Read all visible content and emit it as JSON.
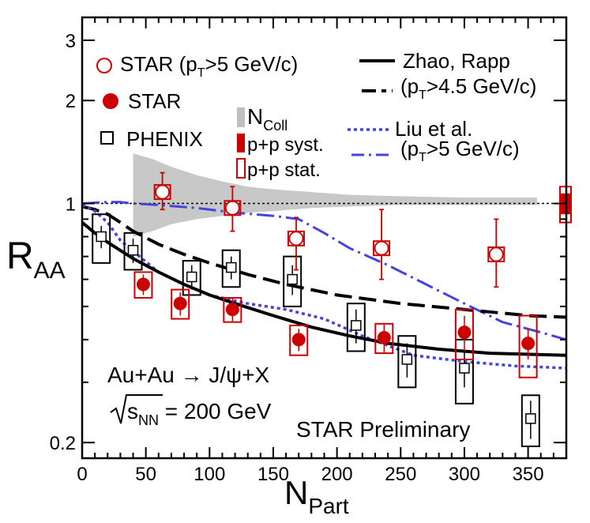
{
  "chart_data": {
    "type": "scatter",
    "ylabel_main": "R",
    "ylabel_sub": "AA",
    "xlabel_main": "N",
    "xlabel_sub": "Part",
    "xlim": [
      0,
      380
    ],
    "ylim": [
      0.18,
      3.5
    ],
    "yscale": "log",
    "x_ticks": [
      0,
      50,
      100,
      150,
      200,
      250,
      300,
      350
    ],
    "x_tick_labels": [
      "0",
      "50",
      "100",
      "150",
      "200",
      "250",
      "300",
      "350"
    ],
    "y_ticks": [
      0.2,
      1,
      2,
      3
    ],
    "y_tick_labels": [
      "0.2",
      "1",
      "2",
      "3"
    ],
    "reference_line": 1,
    "annotations": {
      "reaction": "Au+Au → J/ψ+X",
      "sqrt_label": "s",
      "sqrt_sub": "NN",
      "energy": " = 200 GeV",
      "preliminary": "STAR Preliminary"
    },
    "legend": {
      "star_highpt_pre": "STAR (p",
      "star_highpt_sub": "T",
      "star_highpt_post": ">5 GeV/c)",
      "star": "STAR",
      "phenix": "PHENIX",
      "ncoll_main": "N",
      "ncoll_sub": "Coll",
      "pp_syst": "p+p syst.",
      "pp_stat": "p+p stat.",
      "zhao": "Zhao, Rapp",
      "zhao_pt_pre": "(p",
      "zhao_pt_sub": "T",
      "zhao_pt_post": ">4.5 GeV/c)",
      "liu": "Liu et al.",
      "liu_pt_pre": "(p",
      "liu_pt_sub": "T",
      "liu_pt_post": ">5 GeV/c)"
    },
    "colors": {
      "star": "#cc0000",
      "theory_blue": "#4444dd",
      "band": "#c8c8c8"
    },
    "ncoll_band": {
      "x": [
        40,
        55,
        70,
        90,
        110,
        130,
        150,
        180,
        210,
        250,
        300,
        357
      ],
      "upper": [
        1.4,
        1.35,
        1.28,
        1.21,
        1.16,
        1.12,
        1.1,
        1.08,
        1.06,
        1.05,
        1.04,
        1.04
      ],
      "lower": [
        0.8,
        0.83,
        0.87,
        0.9,
        0.92,
        0.94,
        0.95,
        0.97,
        0.98,
        0.99,
        0.99,
        0.99
      ]
    },
    "series": [
      {
        "name": "PHENIX",
        "x": [
          15,
          40,
          86,
          117,
          165,
          215,
          255,
          300,
          352
        ],
        "y": [
          0.8,
          0.73,
          0.61,
          0.65,
          0.6,
          0.44,
          0.35,
          0.33,
          0.235
        ],
        "err": [
          0.06,
          0.06,
          0.05,
          0.05,
          0.06,
          0.05,
          0.04,
          0.04,
          0.03
        ],
        "syst": [
          0.13,
          0.09,
          0.07,
          0.08,
          0.1,
          0.07,
          0.06,
          0.07,
          0.04
        ]
      },
      {
        "name": "STAR",
        "x": [
          48,
          77,
          118,
          170,
          237,
          300,
          350
        ],
        "y": [
          0.58,
          0.51,
          0.49,
          0.4,
          0.405,
          0.42,
          0.39
        ],
        "err": [
          0.04,
          0.04,
          0.04,
          0.03,
          0.04,
          0.05,
          0.04
        ],
        "syst": [
          0.05,
          0.05,
          0.04,
          0.04,
          0.04,
          0.07,
          0.08
        ]
      },
      {
        "name": "STAR (pT>5 GeV/c)",
        "x": [
          63,
          118,
          168,
          235,
          325
        ],
        "y": [
          1.08,
          0.97,
          0.79,
          0.74,
          0.71
        ],
        "err_up": [
          0.15,
          0.15,
          0.12,
          0.22,
          0.19
        ],
        "err_dn": [
          0.12,
          0.14,
          0.15,
          0.14,
          0.14
        ]
      },
      {
        "name": "Zhao, Rapp",
        "x": [
          0,
          10,
          20,
          40,
          60,
          80,
          100,
          120,
          150,
          180,
          210,
          240,
          280,
          320,
          380
        ],
        "y": [
          0.88,
          0.82,
          0.77,
          0.69,
          0.63,
          0.58,
          0.54,
          0.51,
          0.47,
          0.435,
          0.41,
          0.39,
          0.375,
          0.365,
          0.36
        ]
      },
      {
        "name": "Zhao, Rapp (pT>4.5 GeV/c)",
        "x": [
          0,
          10,
          20,
          30,
          40,
          60,
          80,
          100,
          130,
          160,
          200,
          250,
          300,
          350,
          380
        ],
        "y": [
          0.98,
          0.96,
          0.93,
          0.88,
          0.83,
          0.76,
          0.71,
          0.67,
          0.62,
          0.58,
          0.54,
          0.51,
          0.49,
          0.47,
          0.465
        ]
      },
      {
        "name": "Liu et al.",
        "x": [
          0,
          10,
          20,
          30,
          45,
          60,
          80,
          100,
          130,
          160,
          190,
          220,
          260,
          300,
          340,
          380
        ],
        "y": [
          0.99,
          0.95,
          0.88,
          0.78,
          0.7,
          0.63,
          0.58,
          0.54,
          0.51,
          0.49,
          0.46,
          0.41,
          0.36,
          0.345,
          0.335,
          0.33
        ]
      },
      {
        "name": "Liu et al. (pT>5 GeV/c)",
        "x": [
          0,
          20,
          30,
          40,
          60,
          90,
          120,
          150,
          170,
          190,
          210,
          240,
          270,
          300,
          330,
          360,
          380
        ],
        "y": [
          1.0,
          1.01,
          1.01,
          1.0,
          0.99,
          0.97,
          0.94,
          0.92,
          0.9,
          0.82,
          0.74,
          0.66,
          0.58,
          0.51,
          0.45,
          0.42,
          0.4
        ]
      }
    ],
    "pp_reference": {
      "x": 380,
      "y": 1.0,
      "syst_up": 1.07,
      "syst_dn": 0.93,
      "stat_up": 1.12,
      "stat_dn": 0.88
    }
  }
}
